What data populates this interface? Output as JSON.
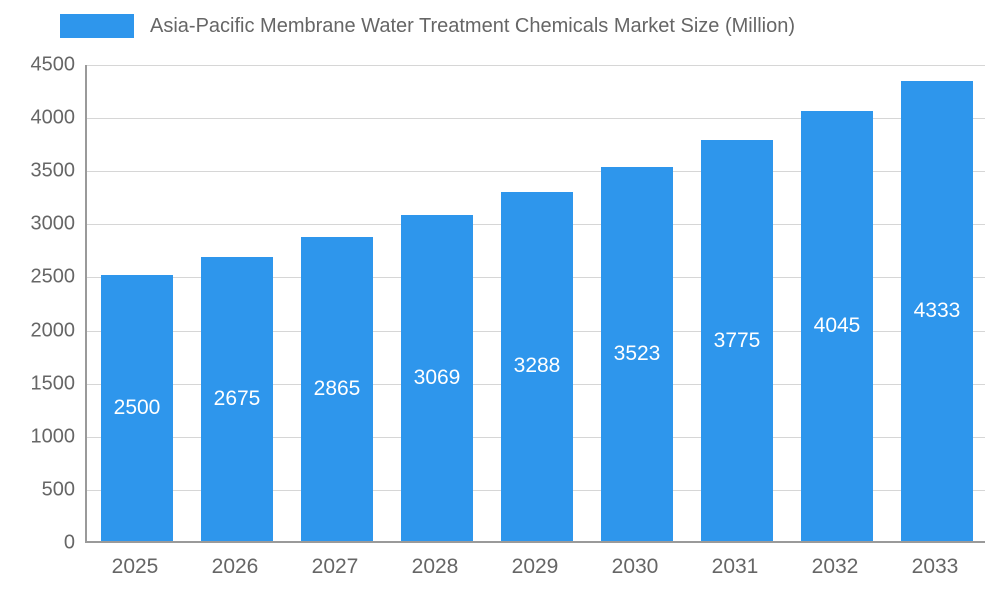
{
  "colors": {
    "bar": "#2E96EC",
    "axis_text": "#666666",
    "grid": "#d6d6d6",
    "bar_label_text": "#ffffff"
  },
  "chart_data": {
    "type": "bar",
    "title": "Asia-Pacific Membrane Water Treatment Chemicals Market Size (Million)",
    "categories": [
      "2025",
      "2026",
      "2027",
      "2028",
      "2029",
      "2030",
      "2031",
      "2032",
      "2033"
    ],
    "values": [
      2500,
      2675,
      2865,
      3069,
      3288,
      3523,
      3775,
      4045,
      4333
    ],
    "xlabel": "",
    "ylabel": "",
    "ylim": [
      0,
      4500
    ],
    "y_ticks": [
      0,
      500,
      1000,
      1500,
      2000,
      2500,
      3000,
      3500,
      4000,
      4500
    ],
    "grid": "horizontal",
    "legend_position": "top-left",
    "bar_labels": "inside-center"
  }
}
